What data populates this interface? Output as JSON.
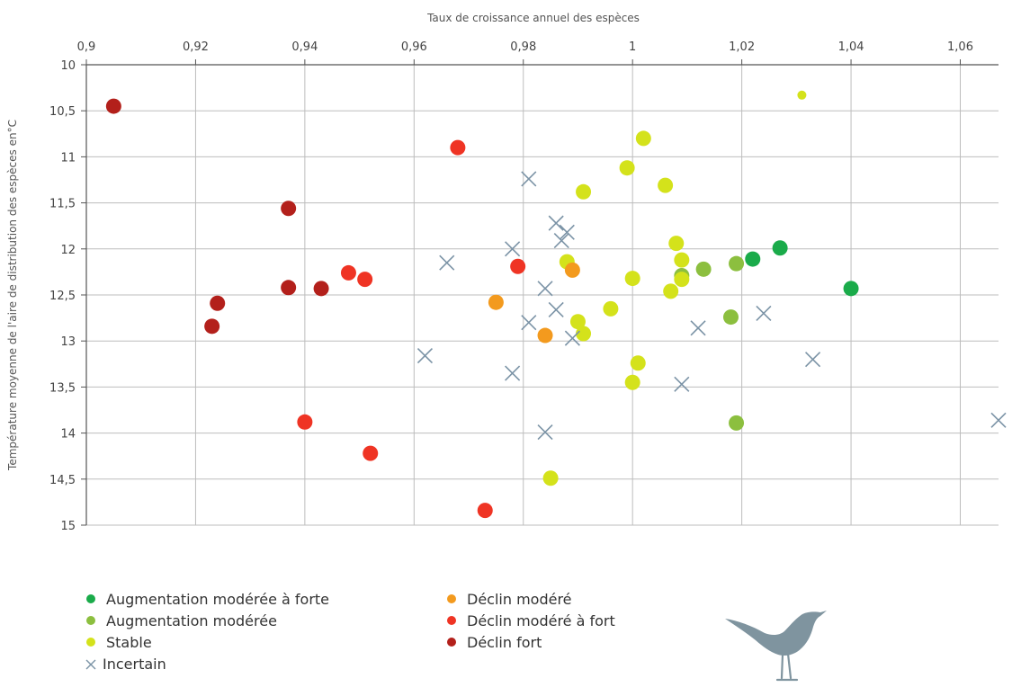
{
  "chart_data": {
    "type": "scatter",
    "title": "",
    "xlabel": "Taux de croissance annuel des espèces",
    "ylabel": "Température moyenne  de l'aire de distribution des espèces en°C",
    "x_axis_position": "top",
    "y_inverted": true,
    "xlim": [
      0.9,
      1.067
    ],
    "ylim": [
      10,
      15
    ],
    "x_ticks": [
      0.9,
      0.92,
      0.94,
      0.96,
      0.98,
      1.0,
      1.02,
      1.04,
      1.06
    ],
    "x_tick_labels": [
      "0,9",
      "0,92",
      "0,94",
      "0,96",
      "0,98",
      "1",
      "1,02",
      "1,04",
      "1,06"
    ],
    "y_ticks": [
      10,
      10.5,
      11,
      11.5,
      12,
      12.5,
      13,
      13.5,
      14,
      14.5,
      15
    ],
    "y_tick_labels": [
      "10",
      "10,5",
      "11",
      "11,5",
      "12",
      "12,5",
      "13",
      "13,5",
      "14",
      "14,5",
      "15"
    ],
    "grid": true,
    "legend_position": "bottom",
    "series": [
      {
        "name": "Augmentation modérée à forte",
        "marker": "circle",
        "color": "#1aab4a",
        "points": [
          [
            1.027,
            11.99
          ],
          [
            1.022,
            12.11
          ],
          [
            1.04,
            12.43
          ]
        ]
      },
      {
        "name": "Augmentation modérée",
        "marker": "circle",
        "color": "#8cbf3f",
        "points": [
          [
            1.009,
            12.29
          ],
          [
            1.013,
            12.22
          ],
          [
            1.019,
            12.16
          ],
          [
            1.018,
            12.74
          ],
          [
            1.019,
            13.89
          ]
        ]
      },
      {
        "name": "Stable",
        "marker": "circle",
        "color": "#d4e21b",
        "points": [
          [
            1.031,
            10.33
          ],
          [
            1.002,
            10.8
          ],
          [
            0.999,
            11.12
          ],
          [
            1.006,
            11.31
          ],
          [
            0.991,
            11.38
          ],
          [
            1.008,
            11.94
          ],
          [
            1.009,
            12.12
          ],
          [
            0.988,
            12.14
          ],
          [
            1.0,
            12.32
          ],
          [
            1.009,
            12.33
          ],
          [
            1.007,
            12.46
          ],
          [
            0.996,
            12.65
          ],
          [
            0.99,
            12.79
          ],
          [
            0.991,
            12.92
          ],
          [
            1.001,
            13.24
          ],
          [
            1.0,
            13.45
          ],
          [
            0.985,
            14.49
          ]
        ]
      },
      {
        "name": "Déclin modéré",
        "marker": "circle",
        "color": "#f39a1e",
        "points": [
          [
            0.989,
            12.23
          ],
          [
            0.975,
            12.58
          ],
          [
            0.984,
            12.94
          ]
        ]
      },
      {
        "name": "Déclin modéré à fort",
        "marker": "circle",
        "color": "#ef3424",
        "points": [
          [
            0.968,
            10.9
          ],
          [
            0.979,
            12.19
          ],
          [
            0.948,
            12.26
          ],
          [
            0.951,
            12.33
          ],
          [
            0.94,
            13.88
          ],
          [
            0.952,
            14.22
          ],
          [
            0.973,
            14.84
          ]
        ]
      },
      {
        "name": "Déclin fort",
        "marker": "circle",
        "color": "#b3201b",
        "points": [
          [
            0.905,
            10.45
          ],
          [
            0.937,
            11.56
          ],
          [
            0.937,
            12.42
          ],
          [
            0.943,
            12.43
          ],
          [
            0.924,
            12.59
          ],
          [
            0.923,
            12.84
          ]
        ]
      },
      {
        "name": "Incertain",
        "marker": "cross",
        "color": "#7b93a6",
        "points": [
          [
            0.981,
            11.24
          ],
          [
            0.986,
            11.72
          ],
          [
            0.987,
            11.91
          ],
          [
            0.988,
            11.82
          ],
          [
            0.978,
            12.0
          ],
          [
            0.966,
            12.15
          ],
          [
            0.984,
            12.43
          ],
          [
            0.986,
            12.66
          ],
          [
            0.981,
            12.8
          ],
          [
            0.989,
            12.97
          ],
          [
            1.012,
            12.86
          ],
          [
            1.024,
            12.7
          ],
          [
            0.962,
            13.16
          ],
          [
            0.978,
            13.35
          ],
          [
            1.009,
            13.47
          ],
          [
            1.033,
            13.2
          ],
          [
            0.984,
            13.99
          ],
          [
            1.067,
            13.86
          ]
        ]
      }
    ]
  },
  "legend": {
    "items": [
      {
        "label": "Augmentation modérée à forte",
        "color": "#1aab4a",
        "marker": "circle"
      },
      {
        "label": "Augmentation modérée",
        "color": "#8cbf3f",
        "marker": "circle"
      },
      {
        "label": "Stable",
        "color": "#d4e21b",
        "marker": "circle"
      },
      {
        "label": "Incertain",
        "color": "#7b93a6",
        "marker": "cross"
      },
      {
        "label": "Déclin modéré",
        "color": "#f39a1e",
        "marker": "circle"
      },
      {
        "label": "Déclin modéré à fort",
        "color": "#ef3424",
        "marker": "circle"
      },
      {
        "label": "Déclin fort",
        "color": "#b3201b",
        "marker": "circle"
      }
    ]
  },
  "decoration": {
    "bird_icon_color": "#7f949f",
    "grid_color": "#bdbdbd",
    "axis_color": "#555555"
  }
}
